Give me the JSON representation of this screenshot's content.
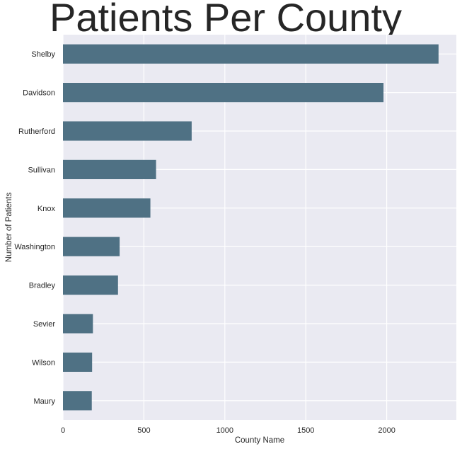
{
  "chart_data": {
    "type": "bar",
    "orientation": "horizontal",
    "title": "Patients Per County",
    "xlabel": "County Name",
    "ylabel": "Number of Patients",
    "categories": [
      "Shelby",
      "Davidson",
      "Rutherford",
      "Sullivan",
      "Knox",
      "Washington",
      "Bradley",
      "Sevier",
      "Wilson",
      "Maury"
    ],
    "values": [
      2320,
      1980,
      795,
      575,
      540,
      350,
      340,
      185,
      180,
      178
    ],
    "xlim": [
      0,
      2430
    ],
    "xticks": [
      0,
      500,
      1000,
      1500,
      2000
    ],
    "grid": true,
    "legend": "none",
    "colors": {
      "bar": "#4f7184",
      "background": "#eaeaf2",
      "grid": "#ffffff",
      "text": "#262626"
    }
  }
}
